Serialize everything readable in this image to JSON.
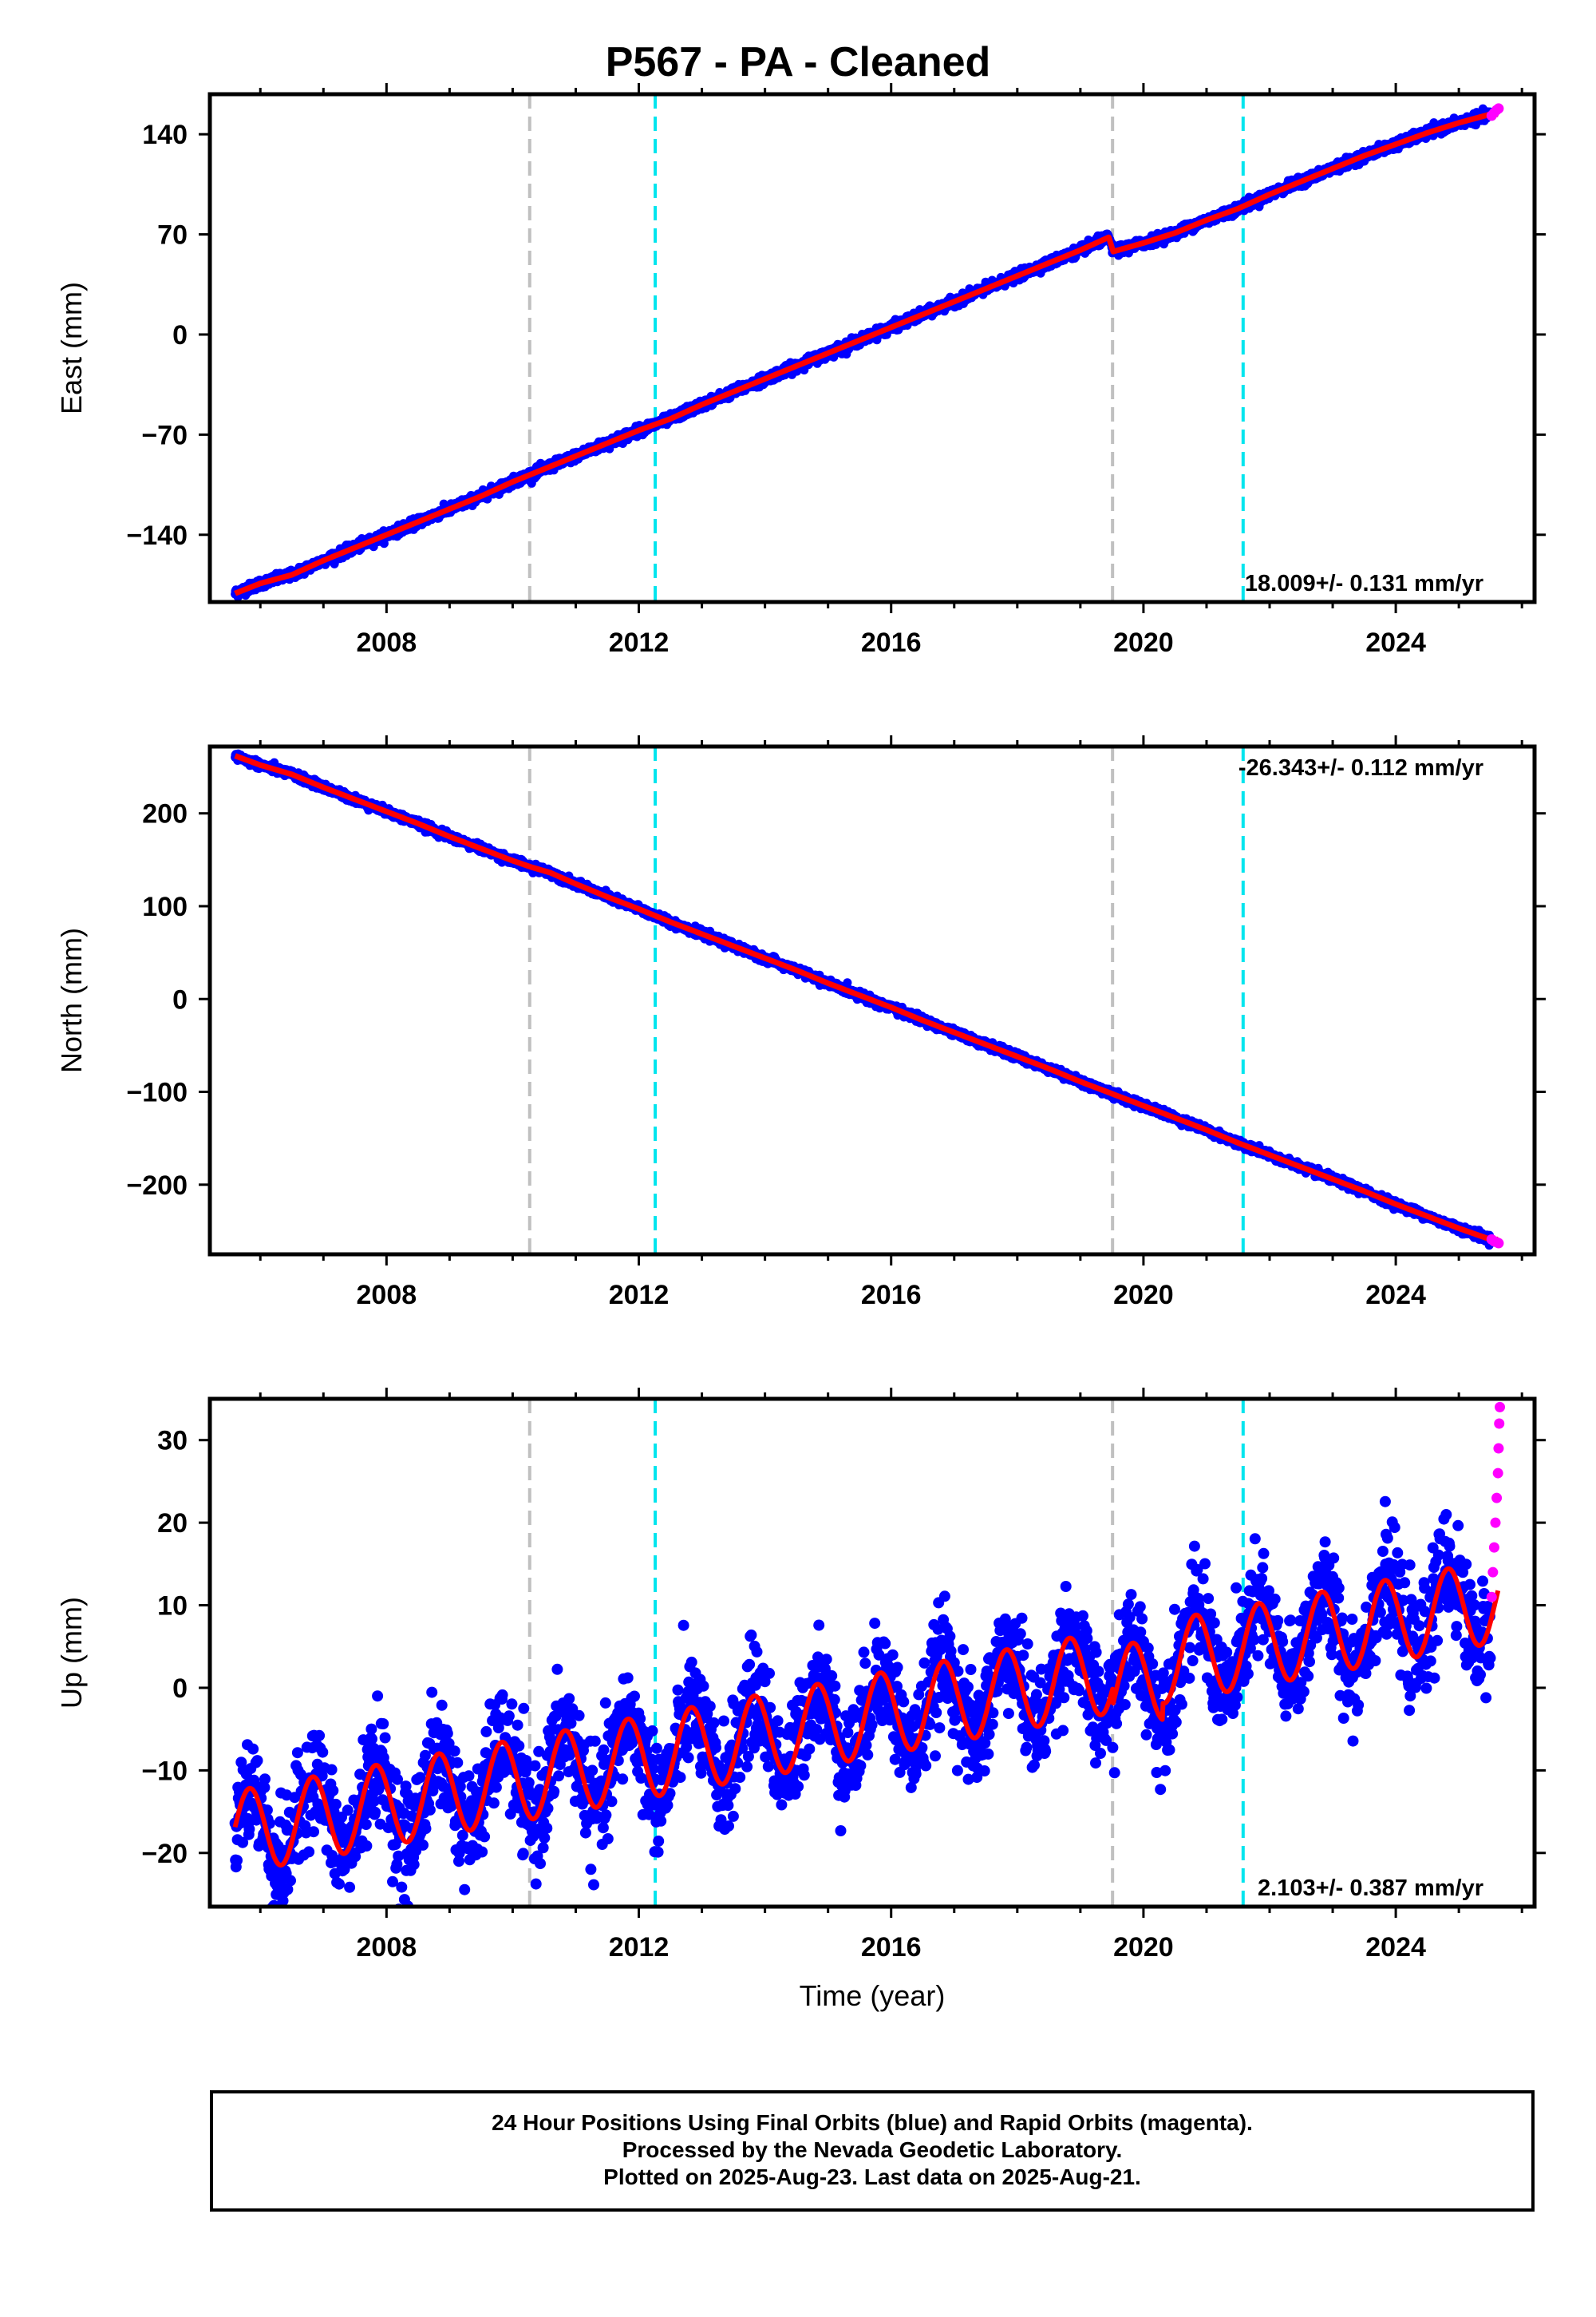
{
  "title": "P567  - PA - Cleaned",
  "colors": {
    "final_orbits": "#0000ff",
    "rapid_orbits": "#ff00ff",
    "model_fit": "#ff0000",
    "equipment_change": "#c0c0c0",
    "earthquake": "#00e5ee"
  },
  "caption": {
    "line1": "24 Hour Positions Using Final Orbits (blue) and Rapid Orbits (magenta).",
    "line2": "Processed by the Nevada Geodetic Laboratory.",
    "line3": "Plotted on 2025-Aug-23. Last data on 2025-Aug-21."
  },
  "chart_data": [
    {
      "type": "scatter",
      "name": "east",
      "ylabel": "East (mm)",
      "xlabel": "",
      "xlim": [
        2005.2,
        2026.2
      ],
      "ylim": [
        -187,
        168
      ],
      "xticks": [
        2008,
        2012,
        2016,
        2020,
        2024
      ],
      "yticks": [
        -140,
        -70,
        0,
        70,
        140
      ],
      "rate_text": "18.009+/- 0.131 mm/yr",
      "rate_position": "bottom-right",
      "vertical_lines": [
        {
          "x": 2010.27,
          "kind": "equipment_change"
        },
        {
          "x": 2012.26,
          "kind": "earthquake"
        },
        {
          "x": 2019.51,
          "kind": "equipment_change"
        },
        {
          "x": 2021.58,
          "kind": "earthquake"
        }
      ],
      "model_points": [
        [
          2005.6,
          -181
        ],
        [
          2006.0,
          -174
        ],
        [
          2006.5,
          -168
        ],
        [
          2007.0,
          -158
        ],
        [
          2007.5,
          -149
        ],
        [
          2008.0,
          -140
        ],
        [
          2008.5,
          -131
        ],
        [
          2009.0,
          -122
        ],
        [
          2009.5,
          -113
        ],
        [
          2010.0,
          -103
        ],
        [
          2010.5,
          -94
        ],
        [
          2011.0,
          -85
        ],
        [
          2011.5,
          -76
        ],
        [
          2012.0,
          -67
        ],
        [
          2012.5,
          -59
        ],
        [
          2013.0,
          -49
        ],
        [
          2013.5,
          -40
        ],
        [
          2014.0,
          -31
        ],
        [
          2014.5,
          -22
        ],
        [
          2015.0,
          -13
        ],
        [
          2015.5,
          -4
        ],
        [
          2016.0,
          5
        ],
        [
          2016.5,
          14
        ],
        [
          2017.0,
          23
        ],
        [
          2017.5,
          32
        ],
        [
          2018.0,
          41
        ],
        [
          2018.5,
          50
        ],
        [
          2019.0,
          59
        ],
        [
          2019.45,
          68
        ],
        [
          2019.52,
          58
        ],
        [
          2020.0,
          64
        ],
        [
          2020.5,
          71
        ],
        [
          2021.0,
          80
        ],
        [
          2021.5,
          88
        ],
        [
          2022.0,
          98
        ],
        [
          2022.5,
          107
        ],
        [
          2023.0,
          116
        ],
        [
          2023.5,
          125
        ],
        [
          2024.0,
          133
        ],
        [
          2024.5,
          141
        ],
        [
          2025.0,
          148
        ],
        [
          2025.5,
          154
        ]
      ],
      "rapid_points": [
        [
          2025.52,
          153
        ],
        [
          2025.56,
          155
        ],
        [
          2025.6,
          157
        ],
        [
          2025.63,
          158
        ]
      ]
    },
    {
      "type": "scatter",
      "name": "north",
      "ylabel": "North (mm)",
      "xlabel": "",
      "xlim": [
        2005.2,
        2026.2
      ],
      "ylim": [
        -275,
        272
      ],
      "xticks": [
        2008,
        2012,
        2016,
        2020,
        2024
      ],
      "yticks": [
        -200,
        -100,
        0,
        100,
        200
      ],
      "rate_text": "-26.343+/- 0.112 mm/yr",
      "rate_position": "top-right",
      "vertical_lines": [
        {
          "x": 2010.27,
          "kind": "equipment_change"
        },
        {
          "x": 2012.26,
          "kind": "earthquake"
        },
        {
          "x": 2019.51,
          "kind": "equipment_change"
        },
        {
          "x": 2021.58,
          "kind": "earthquake"
        }
      ],
      "model_points": [
        [
          2005.6,
          262
        ],
        [
          2006.0,
          252
        ],
        [
          2006.5,
          242
        ],
        [
          2007.0,
          228
        ],
        [
          2007.5,
          215
        ],
        [
          2008.0,
          202
        ],
        [
          2008.5,
          189
        ],
        [
          2009.0,
          175
        ],
        [
          2009.5,
          162
        ],
        [
          2010.0,
          149
        ],
        [
          2010.3,
          142
        ],
        [
          2010.6,
          136
        ],
        [
          2011.0,
          124
        ],
        [
          2011.5,
          110
        ],
        [
          2012.0,
          97
        ],
        [
          2012.5,
          83
        ],
        [
          2013.0,
          70
        ],
        [
          2013.5,
          57
        ],
        [
          2014.0,
          44
        ],
        [
          2014.5,
          31
        ],
        [
          2015.0,
          17
        ],
        [
          2015.5,
          4
        ],
        [
          2016.0,
          -9
        ],
        [
          2016.5,
          -23
        ],
        [
          2017.0,
          -36
        ],
        [
          2017.5,
          -49
        ],
        [
          2018.0,
          -62
        ],
        [
          2018.5,
          -75
        ],
        [
          2019.0,
          -89
        ],
        [
          2019.5,
          -102
        ],
        [
          2020.0,
          -115
        ],
        [
          2020.5,
          -128
        ],
        [
          2021.0,
          -141
        ],
        [
          2021.5,
          -155
        ],
        [
          2022.0,
          -168
        ],
        [
          2022.5,
          -181
        ],
        [
          2023.0,
          -194
        ],
        [
          2023.5,
          -207
        ],
        [
          2024.0,
          -221
        ],
        [
          2024.5,
          -234
        ],
        [
          2025.0,
          -247
        ],
        [
          2025.5,
          -259
        ]
      ],
      "rapid_points": [
        [
          2025.52,
          -259
        ],
        [
          2025.56,
          -261
        ],
        [
          2025.6,
          -262
        ],
        [
          2025.63,
          -263
        ]
      ]
    },
    {
      "type": "scatter",
      "name": "up",
      "ylabel": "Up (mm)",
      "xlabel": "Time (year)",
      "xlim": [
        2005.2,
        2026.2
      ],
      "ylim": [
        -26.5,
        35
      ],
      "xticks": [
        2008,
        2012,
        2016,
        2020,
        2024
      ],
      "yticks": [
        -20,
        -10,
        0,
        10,
        20,
        30
      ],
      "rate_text": "2.103+/- 0.387 mm/yr",
      "rate_position": "bottom-right",
      "vertical_lines": [
        {
          "x": 2010.27,
          "kind": "equipment_change"
        },
        {
          "x": 2012.26,
          "kind": "earthquake"
        },
        {
          "x": 2019.51,
          "kind": "equipment_change"
        },
        {
          "x": 2021.58,
          "kind": "earthquake"
        }
      ],
      "model_trend": {
        "start": [
          2005.6,
          -17.5
        ],
        "end": [
          2025.6,
          10.5
        ]
      },
      "seasonal_amplitude": 5.0,
      "seasonal_peak_fraction": 0.83,
      "scatter_spread": 3.2,
      "rapid_points": [
        [
          2025.52,
          11
        ],
        [
          2025.54,
          14
        ],
        [
          2025.56,
          17
        ],
        [
          2025.58,
          20
        ],
        [
          2025.6,
          23
        ],
        [
          2025.62,
          26
        ],
        [
          2025.63,
          29
        ],
        [
          2025.64,
          32
        ],
        [
          2025.65,
          34
        ]
      ]
    }
  ]
}
